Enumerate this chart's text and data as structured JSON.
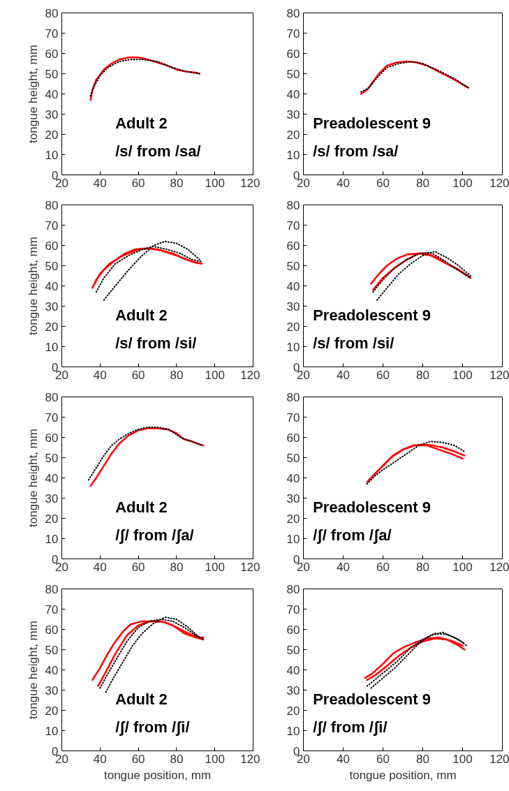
{
  "chart_data": [
    {
      "type": "line",
      "ylabel": "tongue height, mm",
      "xlim": [
        20,
        120
      ],
      "ylim": [
        0,
        80
      ],
      "xticks": [
        20,
        40,
        60,
        80,
        100,
        120
      ],
      "yticks": [
        0,
        10,
        20,
        30,
        40,
        50,
        60,
        70,
        80
      ],
      "annotations": [
        "Adult 2",
        "/s/ from /sa/"
      ],
      "series": [
        {
          "color": "#ff0000",
          "line_style": "solid",
          "x": [
            35,
            36,
            38,
            42,
            46,
            50,
            55,
            60,
            65,
            70,
            75,
            80,
            85,
            90,
            92
          ],
          "values": [
            37,
            42,
            47,
            52,
            55,
            57,
            58,
            58,
            57,
            55.5,
            54,
            52,
            51,
            50.5,
            50
          ]
        },
        {
          "color": "#000000",
          "line_style": "dotted",
          "x": [
            35,
            37,
            40,
            44,
            50,
            56,
            62,
            70,
            78,
            85,
            92
          ],
          "values": [
            39,
            44,
            49,
            53,
            56,
            57,
            57,
            56,
            53,
            51,
            50
          ]
        }
      ]
    },
    {
      "type": "line",
      "xlim": [
        20,
        120
      ],
      "ylim": [
        0,
        80
      ],
      "xticks": [
        20,
        40,
        60,
        80,
        100,
        120
      ],
      "yticks": [
        0,
        10,
        20,
        30,
        40,
        50,
        60,
        70,
        80
      ],
      "annotations": [
        "Preadolescent 9",
        "/s/ from /sa/"
      ],
      "series": [
        {
          "color": "#ff0000",
          "line_style": "solid",
          "x": [
            49,
            52,
            55,
            58,
            62,
            67,
            72,
            77,
            82,
            88,
            95,
            103
          ],
          "values": [
            40,
            42,
            46,
            50,
            54,
            55.5,
            56,
            55.5,
            54,
            51,
            47.5,
            43
          ]
        },
        {
          "color": "#000000",
          "line_style": "dotted",
          "x": [
            49,
            53,
            57,
            62,
            68,
            74,
            80,
            88,
            96,
            103
          ],
          "values": [
            41,
            43,
            48,
            53,
            55,
            56,
            55,
            51.5,
            47.5,
            43
          ]
        }
      ]
    },
    {
      "type": "line",
      "ylabel": "tongue height, mm",
      "xlim": [
        20,
        120
      ],
      "ylim": [
        0,
        80
      ],
      "xticks": [
        20,
        40,
        60,
        80,
        100,
        120
      ],
      "yticks": [
        0,
        10,
        20,
        30,
        40,
        50,
        60,
        70,
        80
      ],
      "annotations": [
        "Adult 2",
        "/s/ from /si/"
      ],
      "series": [
        {
          "color": "#ff0000",
          "line_style": "solid",
          "x": [
            36,
            38,
            42,
            47,
            53,
            58,
            64,
            70,
            78,
            85,
            90,
            93
          ],
          "values": [
            39,
            43,
            48,
            52,
            56,
            58,
            58.5,
            58,
            56,
            53,
            51.5,
            51
          ]
        },
        {
          "color": "#ff0000",
          "line_style": "solid",
          "x": [
            37,
            40,
            45,
            52,
            60,
            66,
            72,
            80,
            88,
            93
          ],
          "values": [
            41,
            46,
            51,
            55,
            58,
            58.5,
            57.5,
            55,
            52,
            51
          ]
        },
        {
          "color": "#000000",
          "line_style": "dotted",
          "x": [
            38,
            42,
            48,
            55,
            62,
            68,
            75,
            82,
            88,
            93
          ],
          "values": [
            37,
            44,
            51,
            55,
            58,
            59.5,
            58,
            56,
            53,
            52
          ]
        },
        {
          "color": "#000000",
          "line_style": "dotted",
          "x": [
            42,
            48,
            55,
            62,
            68,
            74,
            80,
            86,
            92
          ],
          "values": [
            33,
            40,
            48,
            55,
            60,
            62,
            61,
            58,
            53
          ]
        }
      ]
    },
    {
      "type": "line",
      "xlim": [
        20,
        120
      ],
      "ylim": [
        0,
        80
      ],
      "xticks": [
        20,
        40,
        60,
        80,
        100,
        120
      ],
      "yticks": [
        0,
        10,
        20,
        30,
        40,
        50,
        60,
        70,
        80
      ],
      "annotations": [
        "Preadolescent 9",
        "/s/ from /si/"
      ],
      "series": [
        {
          "color": "#ff0000",
          "line_style": "solid",
          "x": [
            54,
            58,
            62,
            67,
            72,
            78,
            82,
            87,
            92,
            98,
            104
          ],
          "values": [
            41,
            46,
            50,
            53.5,
            55.5,
            56,
            56,
            54,
            51,
            48,
            44
          ]
        },
        {
          "color": "#ff0000",
          "line_style": "solid",
          "x": [
            55,
            60,
            66,
            72,
            78,
            84,
            90,
            96,
            104
          ],
          "values": [
            38,
            44,
            49,
            53,
            56,
            55,
            52,
            49,
            44
          ]
        },
        {
          "color": "#000000",
          "line_style": "dotted",
          "x": [
            55,
            60,
            66,
            72,
            78,
            84,
            90,
            96,
            104
          ],
          "values": [
            37,
            43,
            49,
            53,
            56,
            56.5,
            53,
            49,
            44
          ]
        },
        {
          "color": "#000000",
          "line_style": "dotted",
          "x": [
            57,
            62,
            68,
            74,
            80,
            86,
            92,
            98,
            104
          ],
          "values": [
            33,
            39,
            46,
            51,
            55,
            57,
            54,
            50,
            45
          ]
        }
      ]
    },
    {
      "type": "line",
      "ylabel": "tongue height, mm",
      "xlim": [
        20,
        120
      ],
      "ylim": [
        0,
        80
      ],
      "xticks": [
        20,
        40,
        60,
        80,
        100,
        120
      ],
      "yticks": [
        0,
        10,
        20,
        30,
        40,
        50,
        60,
        70,
        80
      ],
      "annotations": [
        "Adult 2",
        "/ʃ/ from /ʃa/"
      ],
      "series": [
        {
          "color": "#ff0000",
          "line_style": "solid",
          "x": [
            35,
            38,
            42,
            46,
            50,
            55,
            60,
            65,
            70,
            75,
            80,
            84,
            88,
            92,
            94
          ],
          "values": [
            36,
            40,
            46,
            52,
            57,
            61,
            63.5,
            64.5,
            64.5,
            64,
            62,
            59,
            58,
            56.5,
            56
          ]
        },
        {
          "color": "#000000",
          "line_style": "dotted",
          "x": [
            34,
            38,
            42,
            46,
            50,
            55,
            60,
            65,
            70,
            76,
            82,
            88,
            94
          ],
          "values": [
            39,
            45,
            51,
            56,
            59,
            62,
            64,
            65,
            65,
            64,
            60,
            58,
            56
          ]
        }
      ]
    },
    {
      "type": "line",
      "xlim": [
        20,
        120
      ],
      "ylim": [
        0,
        80
      ],
      "xticks": [
        20,
        40,
        60,
        80,
        100,
        120
      ],
      "yticks": [
        0,
        10,
        20,
        30,
        40,
        50,
        60,
        70,
        80
      ],
      "annotations": [
        "Preadolescent 9",
        "/ʃ/ from /ʃa/"
      ],
      "series": [
        {
          "color": "#ff0000",
          "line_style": "solid",
          "x": [
            52,
            56,
            60,
            65,
            70,
            75,
            80,
            85,
            90,
            96,
            101
          ],
          "values": [
            38,
            42,
            46,
            51,
            54,
            56,
            56.5,
            56,
            55,
            53,
            51
          ]
        },
        {
          "color": "#ff0000",
          "line_style": "solid",
          "x": [
            53,
            58,
            64,
            70,
            76,
            82,
            88,
            94,
            100
          ],
          "values": [
            39,
            44,
            50,
            54,
            56,
            56,
            54,
            52,
            49.5
          ]
        },
        {
          "color": "#000000",
          "line_style": "dotted",
          "x": [
            52,
            56,
            60,
            66,
            72,
            78,
            84,
            90,
            96,
            101
          ],
          "values": [
            37,
            41,
            44,
            48,
            52,
            56,
            58,
            57.5,
            56,
            53
          ]
        }
      ]
    },
    {
      "type": "line",
      "xlabel": "tongue position, mm",
      "ylabel": "tongue height, mm",
      "xlim": [
        20,
        120
      ],
      "ylim": [
        0,
        80
      ],
      "xticks": [
        20,
        40,
        60,
        80,
        100,
        120
      ],
      "yticks": [
        0,
        10,
        20,
        30,
        40,
        50,
        60,
        70,
        80
      ],
      "annotations": [
        "Adult 2",
        "/ʃ/ from /ʃi/"
      ],
      "series": [
        {
          "color": "#ff0000",
          "line_style": "solid",
          "x": [
            36,
            40,
            44,
            48,
            52,
            56,
            62,
            68,
            74,
            80,
            86,
            92,
            94
          ],
          "values": [
            35,
            41,
            48,
            54,
            59,
            62.5,
            64,
            64,
            63.5,
            61,
            58,
            56,
            56
          ]
        },
        {
          "color": "#ff0000",
          "line_style": "solid",
          "x": [
            39,
            43,
            48,
            54,
            60,
            66,
            72,
            78,
            84,
            90,
            94
          ],
          "values": [
            32,
            39,
            48,
            57,
            62,
            64,
            64,
            62,
            58,
            56,
            55
          ]
        },
        {
          "color": "#000000",
          "line_style": "dotted",
          "x": [
            40,
            44,
            49,
            54,
            60,
            66,
            72,
            78,
            84,
            90,
            94
          ],
          "values": [
            31,
            38,
            46,
            54,
            61,
            64,
            65,
            64,
            61,
            57,
            55
          ]
        },
        {
          "color": "#000000",
          "line_style": "dotted",
          "x": [
            43,
            47,
            52,
            57,
            62,
            68,
            74,
            80,
            86,
            92
          ],
          "values": [
            29,
            36,
            44,
            52,
            58,
            63,
            66,
            65,
            61,
            56
          ]
        }
      ]
    },
    {
      "type": "line",
      "xlabel": "tongue position, mm",
      "xlim": [
        20,
        120
      ],
      "ylim": [
        0,
        80
      ],
      "xticks": [
        20,
        40,
        60,
        80,
        100,
        120
      ],
      "yticks": [
        0,
        10,
        20,
        30,
        40,
        50,
        60,
        70,
        80
      ],
      "annotations": [
        "Preadolescent 9",
        "/ʃ/ from /ʃi/"
      ],
      "series": [
        {
          "color": "#ff0000",
          "line_style": "solid",
          "x": [
            51,
            55,
            60,
            65,
            70,
            76,
            82,
            88,
            94,
            100
          ],
          "values": [
            36,
            38.5,
            43,
            48,
            51,
            53.5,
            55.5,
            56,
            54.5,
            52
          ]
        },
        {
          "color": "#ff0000",
          "line_style": "solid",
          "x": [
            52,
            57,
            62,
            68,
            74,
            80,
            86,
            92,
            98,
            101
          ],
          "values": [
            35,
            38,
            42,
            47,
            51,
            54,
            55.5,
            55,
            52,
            50
          ]
        },
        {
          "color": "#000000",
          "line_style": "dotted",
          "x": [
            52,
            57,
            62,
            68,
            74,
            80,
            86,
            92,
            98,
            102
          ],
          "values": [
            32,
            36,
            40,
            45,
            51,
            55,
            58,
            57.5,
            55,
            52
          ]
        },
        {
          "color": "#000000",
          "line_style": "dotted",
          "x": [
            54,
            60,
            66,
            72,
            78,
            84,
            90,
            96,
            101
          ],
          "values": [
            31,
            36,
            41,
            47,
            53,
            57,
            58.5,
            56,
            53
          ]
        }
      ]
    }
  ]
}
